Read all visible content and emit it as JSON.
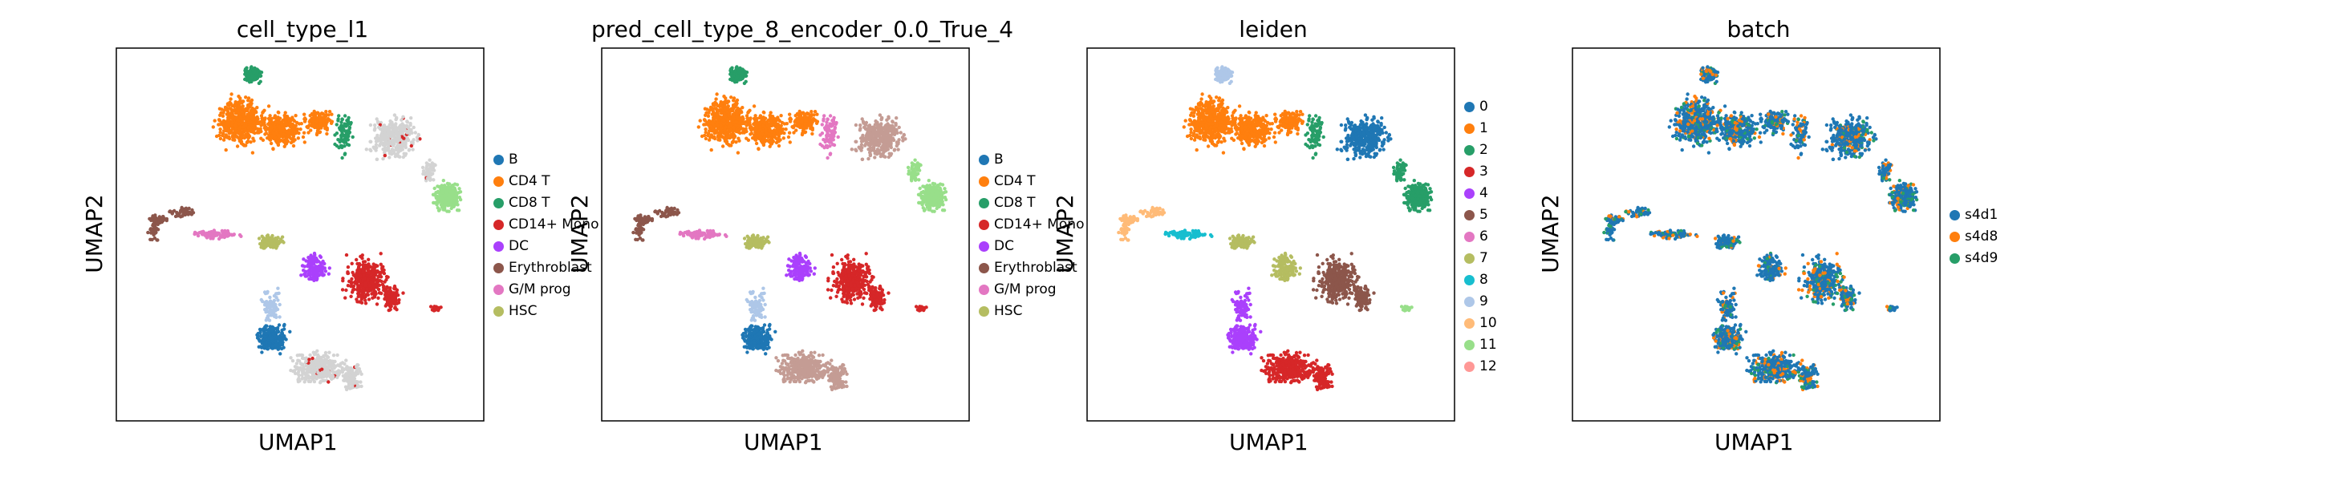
{
  "chart_data": [
    {
      "type": "scatter",
      "title": "cell_type_l1",
      "xlabel": "UMAP1",
      "ylabel": "UMAP2",
      "legend": "right",
      "categories": [
        "B",
        "CD4 T",
        "CD8 T",
        "CD14+ Mono",
        "DC",
        "Erythroblast",
        "G/M prog",
        "HSC"
      ],
      "colors": [
        "#1f77b4",
        "#ff7f0e",
        "#279e68",
        "#d62728",
        "#aa40fc",
        "#8c564b",
        "#e377c2",
        "#b5bd61"
      ],
      "background_color": "#d3d3d3"
    },
    {
      "type": "scatter",
      "title": "pred_cell_type_8_encoder_0.0_True_4",
      "xlabel": "UMAP1",
      "ylabel": "UMAP2",
      "legend": "right",
      "categories": [
        "B",
        "CD4 T",
        "CD8 T",
        "CD14+ Mono",
        "DC",
        "Erythroblast",
        "G/M prog",
        "HSC"
      ],
      "colors": [
        "#1f77b4",
        "#ff7f0e",
        "#279e68",
        "#d62728",
        "#aa40fc",
        "#8c564b",
        "#e377c2",
        "#b5bd61"
      ]
    },
    {
      "type": "scatter",
      "title": "leiden",
      "xlabel": "UMAP1",
      "ylabel": "UMAP2",
      "legend": "right",
      "categories": [
        "0",
        "1",
        "2",
        "3",
        "4",
        "5",
        "6",
        "7",
        "8",
        "9",
        "10",
        "11",
        "12"
      ],
      "colors": [
        "#1f77b4",
        "#ff7f0e",
        "#279e68",
        "#d62728",
        "#aa40fc",
        "#8c564b",
        "#e377c2",
        "#b5bd61",
        "#17becf",
        "#aec7e8",
        "#ffbb78",
        "#98df8a",
        "#ff9896"
      ]
    },
    {
      "type": "scatter",
      "title": "batch",
      "xlabel": "UMAP1",
      "ylabel": "UMAP2",
      "legend": "right",
      "categories": [
        "s4d1",
        "s4d8",
        "s4d9"
      ],
      "colors": [
        "#1f77b4",
        "#ff7f0e",
        "#279e68"
      ]
    }
  ]
}
